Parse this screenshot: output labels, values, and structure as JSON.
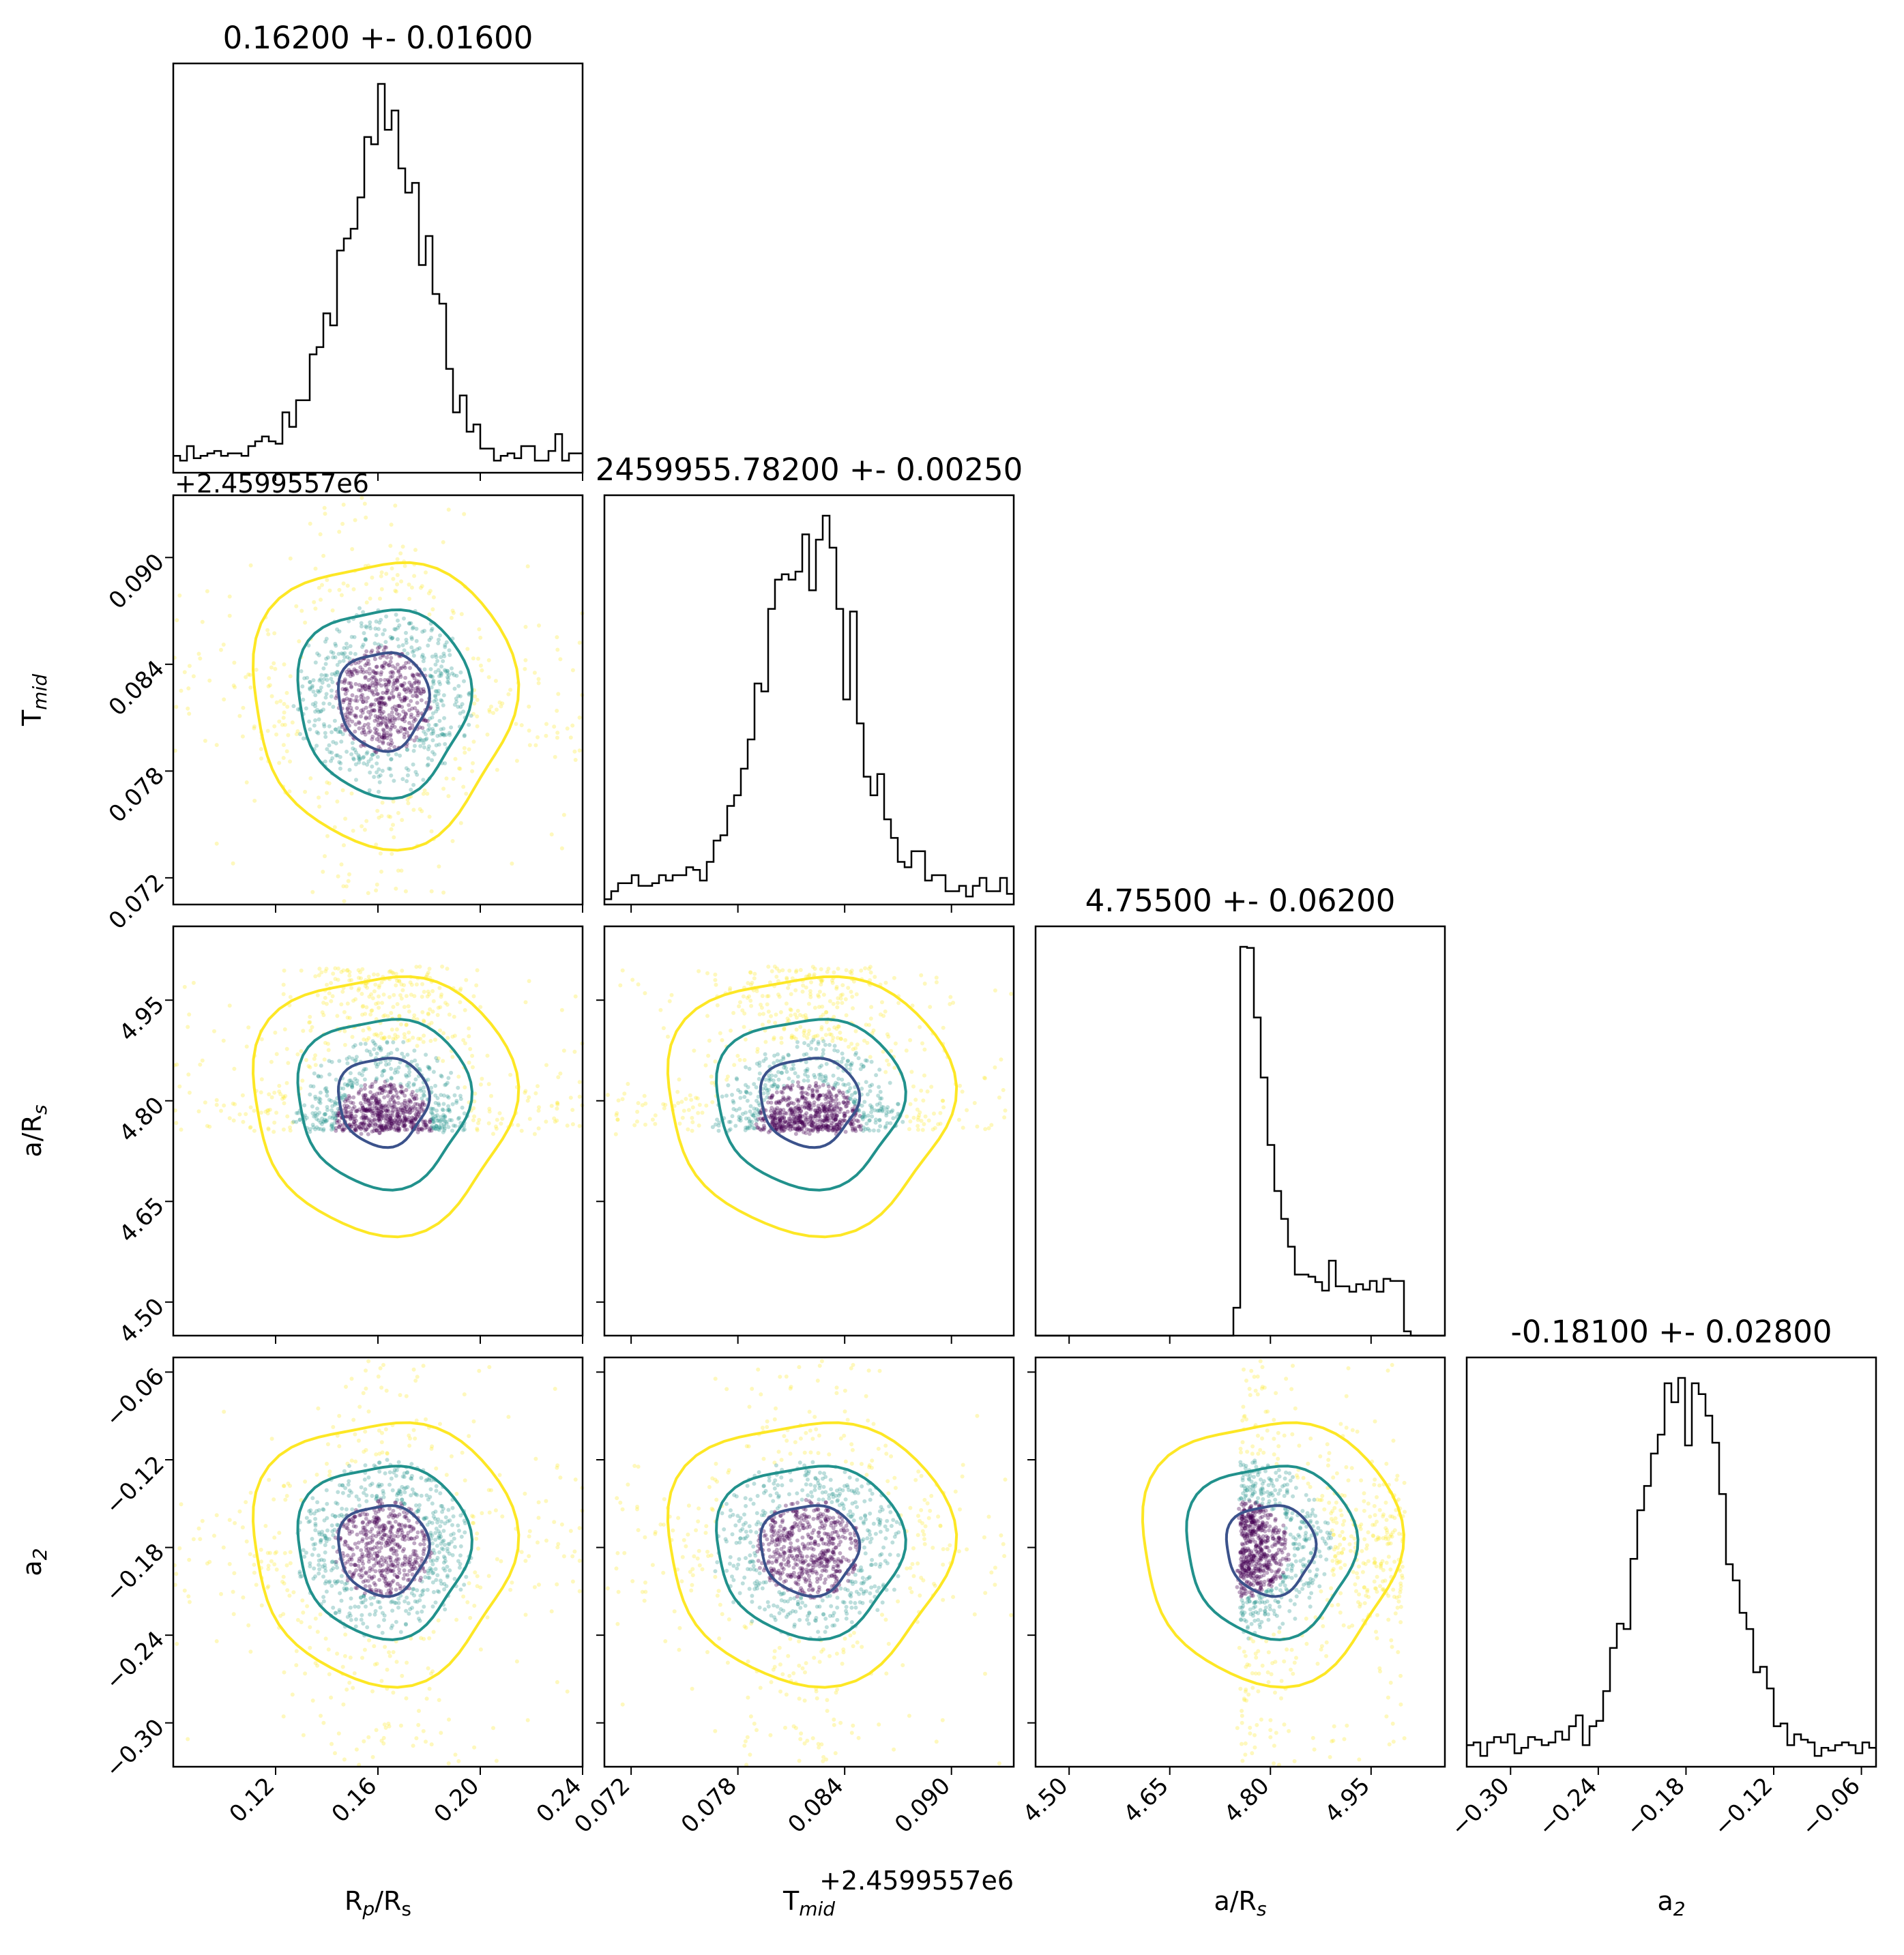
{
  "figure": {
    "type": "corner-plot",
    "parameters": [
      {
        "id": "rp",
        "label": "R",
        "label_sub": "p",
        "label_rest": "/R",
        "label_sub2": "s",
        "title": "0.16200 +- 0.01600",
        "range": [
          0.08,
          0.24
        ],
        "ticks": [
          "0.12",
          "0.16",
          "0.20",
          "0.24"
        ],
        "tick_values": [
          0.12,
          0.16,
          0.2,
          0.24
        ],
        "peak": 0.162,
        "width": 0.016
      },
      {
        "id": "tmid",
        "label": "T",
        "label_sub": "mid",
        "label_rest": "",
        "label_sub2": "",
        "title": "2459955.78200 +- 0.00250",
        "range": [
          0.0705,
          0.0935
        ],
        "ticks": [
          "0.072",
          "0.078",
          "0.084",
          "0.090"
        ],
        "tick_values": [
          0.072,
          0.078,
          0.084,
          0.09
        ],
        "offset_text": "+2.4599557e6",
        "peak": 0.082,
        "width": 0.0025
      },
      {
        "id": "ars",
        "label": "a/R",
        "label_sub": "s",
        "label_rest": "",
        "label_sub2": "",
        "title": "4.75500 +- 0.06200",
        "range": [
          4.45,
          5.06
        ],
        "ticks": [
          "4.50",
          "4.65",
          "4.80",
          "4.95"
        ],
        "tick_values": [
          4.5,
          4.65,
          4.8,
          4.95
        ],
        "peak": 4.755,
        "width": 0.062
      },
      {
        "id": "a2",
        "label": "a",
        "label_sub": "2",
        "label_rest": "",
        "label_sub2": "",
        "title": "-0.18100 +- 0.02800",
        "range": [
          -0.33,
          -0.05
        ],
        "ticks": [
          "−0.30",
          "−0.24",
          "−0.18",
          "−0.12",
          "−0.06"
        ],
        "tick_values": [
          -0.3,
          -0.24,
          -0.18,
          -0.12,
          -0.06
        ],
        "peak": -0.181,
        "width": 0.028
      }
    ],
    "colors": {
      "inner_contour": "#3b528b",
      "middle_contour": "#21918c",
      "outer_contour": "#fde725",
      "histogram": "#000000",
      "points_dense": "#440154"
    }
  },
  "chart_data": {
    "type": "corner",
    "marginals": [
      {
        "parameter": "R_p/R_s",
        "title": "0.16200 +- 0.01600",
        "median": 0.162,
        "sigma": 0.016,
        "xlim": [
          0.08,
          0.24
        ]
      },
      {
        "parameter": "T_mid",
        "title": "2459955.78200 +- 0.00250",
        "median": 0.082,
        "sigma": 0.0025,
        "xlim": [
          0.0705,
          0.0935
        ],
        "offset": "+2.4599557e6"
      },
      {
        "parameter": "a/R_s",
        "title": "4.75500 +- 0.06200",
        "median": 4.755,
        "sigma": 0.062,
        "xlim": [
          4.45,
          5.06
        ],
        "support": [
          4.75,
          5.0
        ]
      },
      {
        "parameter": "a_2",
        "title": "-0.18100 +- 0.02800",
        "median": -0.181,
        "sigma": 0.028,
        "xlim": [
          -0.33,
          -0.05
        ]
      }
    ],
    "joint_contour_levels": [
      "inner",
      "middle",
      "outer"
    ],
    "grid": false
  }
}
